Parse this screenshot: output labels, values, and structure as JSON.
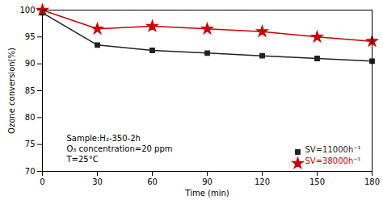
{
  "chart_data": {
    "type": "line",
    "xlabel": "Time (min)",
    "ylabel": "Ozone conversion(%)",
    "x": [
      0,
      30,
      60,
      90,
      120,
      150,
      180
    ],
    "series": [
      {
        "name": "SV=11000h⁻¹",
        "color": "#222222",
        "marker": "square",
        "values": [
          99.5,
          93.5,
          92.5,
          92.0,
          91.5,
          91.0,
          90.5
        ]
      },
      {
        "name": "SV=38000h⁻¹",
        "color": "#cc0000",
        "marker": "star",
        "values": [
          100.0,
          96.5,
          97.0,
          96.5,
          96.0,
          95.0,
          94.2
        ]
      }
    ],
    "xlim": [
      0,
      180
    ],
    "ylim": [
      70,
      100
    ],
    "xticks": [
      0,
      30,
      60,
      90,
      120,
      150,
      180
    ],
    "yticks": [
      70,
      75,
      80,
      85,
      90,
      95,
      100
    ],
    "legend": "lower right",
    "annotations": [
      "Sample:H₂-350-2h",
      "O₃ concentration=20 ppm",
      "T=25°C"
    ]
  }
}
